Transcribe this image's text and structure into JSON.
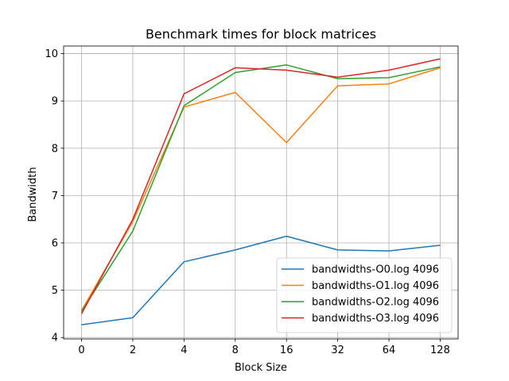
{
  "chart_data": {
    "type": "line",
    "title": "Benchmark times for block matrices",
    "xlabel": "Block Size",
    "ylabel": "Bandwidth",
    "categories": [
      "0",
      "2",
      "4",
      "8",
      "16",
      "32",
      "64",
      "128"
    ],
    "ylim": [
      4,
      10
    ],
    "yticks": [
      4,
      5,
      6,
      7,
      8,
      9,
      10
    ],
    "grid": true,
    "legend_position": "lower-right",
    "series": [
      {
        "name": "bandwidths-O0.log 4096",
        "color": "#1f77b4",
        "values": [
          4.27,
          4.42,
          5.6,
          5.85,
          6.14,
          5.85,
          5.83,
          5.95
        ]
      },
      {
        "name": "bandwidths-O1.log 4096",
        "color": "#ff7f0e",
        "values": [
          4.57,
          6.45,
          8.87,
          9.18,
          8.12,
          9.32,
          9.36,
          9.7
        ]
      },
      {
        "name": "bandwidths-O2.log 4096",
        "color": "#2ca02c",
        "values": [
          4.55,
          6.25,
          8.9,
          9.6,
          9.76,
          9.47,
          9.49,
          9.72
        ]
      },
      {
        "name": "bandwidths-O3.log 4096",
        "color": "#d62728",
        "values": [
          4.5,
          6.5,
          9.15,
          9.7,
          9.65,
          9.5,
          9.65,
          9.89
        ]
      }
    ]
  }
}
